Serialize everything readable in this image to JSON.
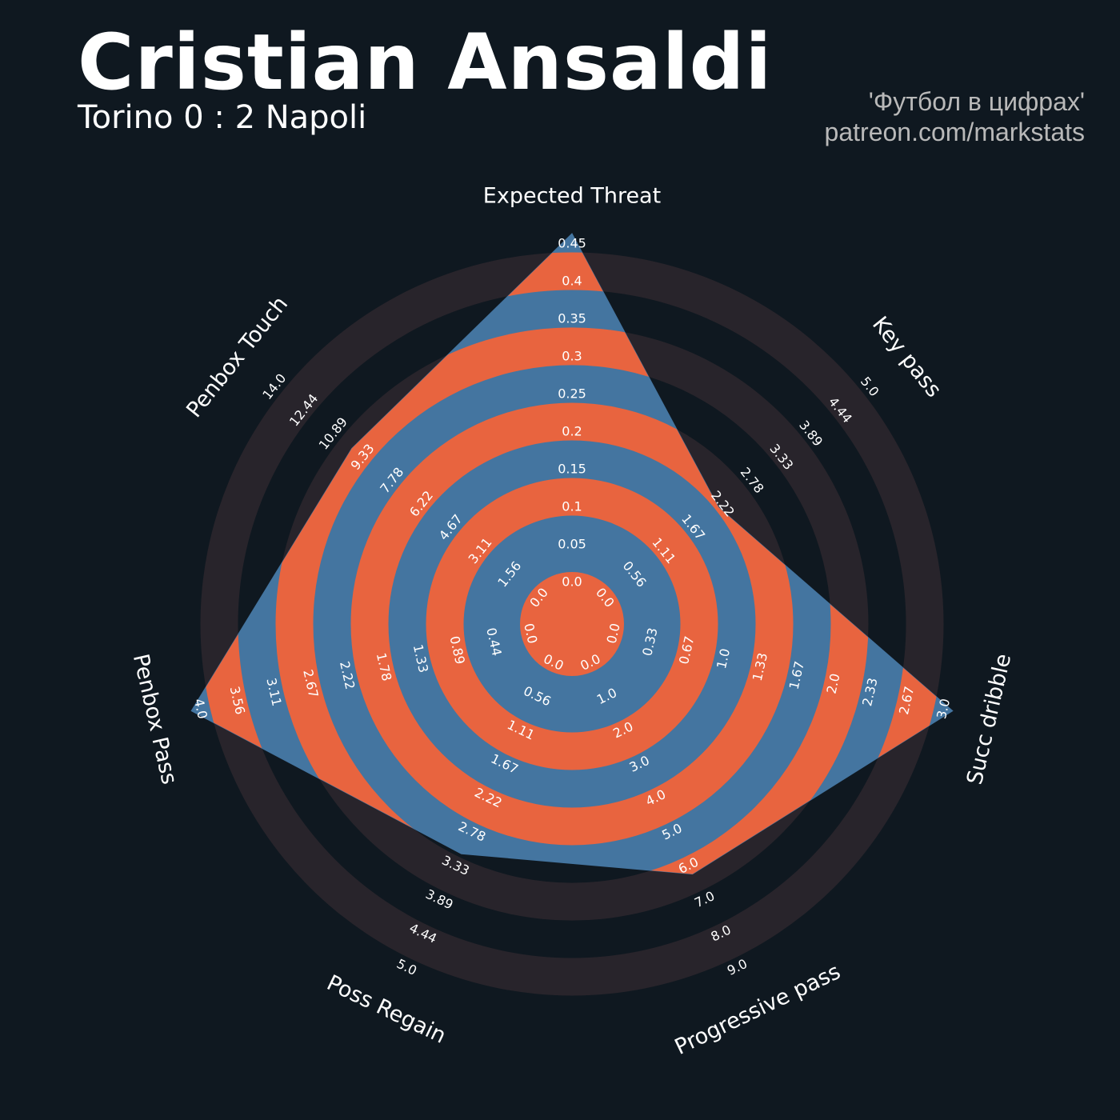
{
  "header": {
    "title": "Cristian Ansaldi",
    "subtitle": "Torino 0 : 2 Napoli",
    "credit_line1": "'Футбол в цифрах'",
    "credit_line2": "patreon.com/markstats"
  },
  "colors": {
    "background": "#0f1820",
    "outer_ring": "#28242b",
    "ring_orange": "#e8643f",
    "polygon_blue": "#4475a0",
    "text": "#ffffff"
  },
  "chart_data": {
    "type": "radar",
    "title": "Cristian Ansaldi",
    "subtitle": "Torino 0 : 2 Napoli",
    "parameters": [
      {
        "name": "Expected Threat",
        "value": 0.45,
        "min": 0.0,
        "max": 0.45,
        "ticks": [
          "0.0",
          "0.05",
          "0.1",
          "0.15",
          "0.2",
          "0.25",
          "0.3",
          "0.35",
          "0.4",
          "0.45"
        ]
      },
      {
        "name": "Key pass",
        "value": 2.0,
        "min": 0.0,
        "max": 5.0,
        "ticks": [
          "0.0",
          "0.56",
          "1.11",
          "1.67",
          "2.22",
          "2.78",
          "3.33",
          "3.89",
          "4.44",
          "5.0"
        ]
      },
      {
        "name": "Succ dribble",
        "value": 3.0,
        "min": 0.0,
        "max": 3.0,
        "ticks": [
          "0.0",
          "0.33",
          "0.67",
          "1.0",
          "1.33",
          "1.67",
          "2.0",
          "2.33",
          "2.67",
          "3.0"
        ]
      },
      {
        "name": "Progressive pass",
        "value": 6.0,
        "min": 0.0,
        "max": 9.0,
        "ticks": [
          "0.0",
          "1.0",
          "2.0",
          "3.0",
          "4.0",
          "5.0",
          "6.0",
          "7.0",
          "8.0",
          "9.0"
        ]
      },
      {
        "name": "Poss Regain",
        "value": 3.0,
        "min": 0.0,
        "max": 5.0,
        "ticks": [
          "0.0",
          "0.56",
          "1.11",
          "1.67",
          "2.22",
          "2.78",
          "3.33",
          "3.89",
          "4.44",
          "5.0"
        ]
      },
      {
        "name": "Penbox Pass",
        "value": 4.0,
        "min": 0.0,
        "max": 4.0,
        "ticks": [
          "0.0",
          "0.44",
          "0.89",
          "1.33",
          "1.78",
          "2.22",
          "2.67",
          "3.11",
          "3.56",
          "4.0"
        ]
      },
      {
        "name": "Penbox Touch",
        "value": 9.5,
        "min": 0.0,
        "max": 14.0,
        "ticks": [
          "0.0",
          "1.56",
          "3.11",
          "4.67",
          "6.22",
          "7.78",
          "9.33",
          "10.89",
          "12.44",
          "14.0"
        ]
      }
    ]
  }
}
